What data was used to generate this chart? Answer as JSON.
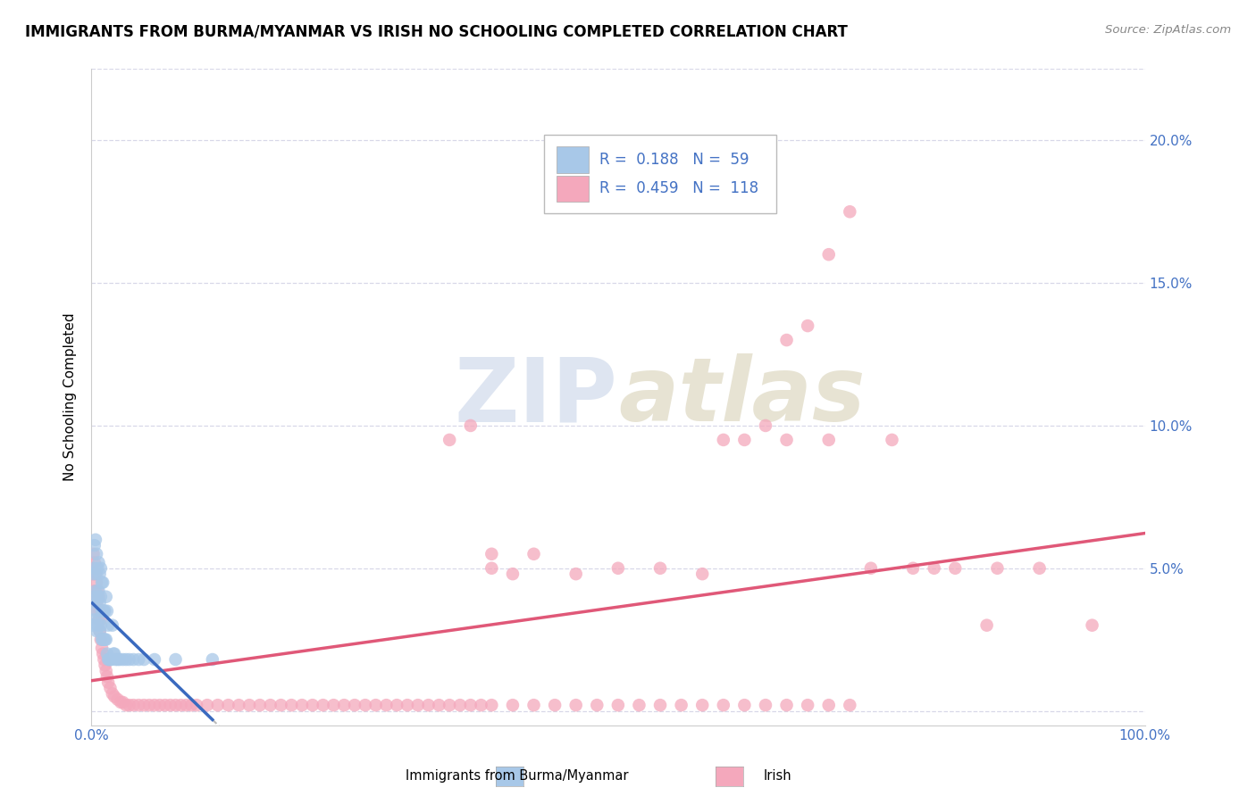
{
  "title": "IMMIGRANTS FROM BURMA/MYANMAR VS IRISH NO SCHOOLING COMPLETED CORRELATION CHART",
  "source": "Source: ZipAtlas.com",
  "ylabel": "No Schooling Completed",
  "xlim": [
    0,
    1.0
  ],
  "ylim": [
    -0.005,
    0.225
  ],
  "yticks": [
    0.0,
    0.05,
    0.1,
    0.15,
    0.2
  ],
  "ytick_labels": [
    "",
    "5.0%",
    "10.0%",
    "15.0%",
    "20.0%"
  ],
  "xtick_labels": [
    "0.0%",
    "100.0%"
  ],
  "blue_R": 0.188,
  "blue_N": 59,
  "pink_R": 0.459,
  "pink_N": 118,
  "blue_color": "#a8c8e8",
  "pink_color": "#f4a8bc",
  "blue_line_color": "#3a6abf",
  "pink_line_color": "#e05878",
  "dashed_line_color": "#bbbbbb",
  "axis_color": "#4472c4",
  "grid_color": "#d8d8e8",
  "watermark_color": "#c8d4e8",
  "title_fontsize": 12,
  "axis_label_fontsize": 11,
  "tick_fontsize": 11,
  "legend_fontsize": 12,
  "blue_points_x": [
    0.001,
    0.002,
    0.002,
    0.003,
    0.003,
    0.003,
    0.004,
    0.004,
    0.004,
    0.005,
    0.005,
    0.005,
    0.005,
    0.006,
    0.006,
    0.006,
    0.007,
    0.007,
    0.007,
    0.008,
    0.008,
    0.008,
    0.009,
    0.009,
    0.009,
    0.01,
    0.01,
    0.01,
    0.011,
    0.011,
    0.011,
    0.012,
    0.012,
    0.013,
    0.013,
    0.014,
    0.014,
    0.015,
    0.015,
    0.016,
    0.016,
    0.017,
    0.018,
    0.019,
    0.02,
    0.021,
    0.022,
    0.023,
    0.025,
    0.027,
    0.03,
    0.033,
    0.036,
    0.04,
    0.045,
    0.05,
    0.06,
    0.08,
    0.115
  ],
  "blue_points_y": [
    0.03,
    0.04,
    0.048,
    0.032,
    0.05,
    0.058,
    0.035,
    0.042,
    0.06,
    0.028,
    0.038,
    0.048,
    0.055,
    0.03,
    0.04,
    0.05,
    0.032,
    0.042,
    0.052,
    0.028,
    0.038,
    0.048,
    0.03,
    0.04,
    0.05,
    0.025,
    0.035,
    0.045,
    0.025,
    0.035,
    0.045,
    0.025,
    0.035,
    0.025,
    0.035,
    0.025,
    0.04,
    0.02,
    0.035,
    0.018,
    0.03,
    0.018,
    0.018,
    0.018,
    0.03,
    0.02,
    0.02,
    0.018,
    0.018,
    0.018,
    0.018,
    0.018,
    0.018,
    0.018,
    0.018,
    0.018,
    0.018,
    0.018,
    0.018
  ],
  "pink_points_x": [
    0.001,
    0.002,
    0.002,
    0.003,
    0.003,
    0.004,
    0.004,
    0.005,
    0.005,
    0.006,
    0.006,
    0.007,
    0.007,
    0.008,
    0.008,
    0.009,
    0.009,
    0.01,
    0.011,
    0.012,
    0.013,
    0.014,
    0.015,
    0.016,
    0.018,
    0.02,
    0.022,
    0.025,
    0.028,
    0.03,
    0.033,
    0.036,
    0.04,
    0.045,
    0.05,
    0.055,
    0.06,
    0.065,
    0.07,
    0.075,
    0.08,
    0.085,
    0.09,
    0.095,
    0.1,
    0.11,
    0.12,
    0.13,
    0.14,
    0.15,
    0.16,
    0.17,
    0.18,
    0.19,
    0.2,
    0.21,
    0.22,
    0.23,
    0.24,
    0.25,
    0.26,
    0.27,
    0.28,
    0.29,
    0.3,
    0.31,
    0.32,
    0.33,
    0.34,
    0.35,
    0.36,
    0.37,
    0.38,
    0.4,
    0.42,
    0.44,
    0.46,
    0.48,
    0.5,
    0.52,
    0.54,
    0.56,
    0.58,
    0.6,
    0.62,
    0.64,
    0.66,
    0.68,
    0.7,
    0.72,
    0.38,
    0.4,
    0.42,
    0.46,
    0.5,
    0.54,
    0.58,
    0.34,
    0.36,
    0.38,
    0.6,
    0.62,
    0.64,
    0.66,
    0.7,
    0.74,
    0.78,
    0.82,
    0.86,
    0.9,
    0.66,
    0.68,
    0.7,
    0.72,
    0.76,
    0.8,
    0.85,
    0.95
  ],
  "pink_points_y": [
    0.05,
    0.048,
    0.055,
    0.042,
    0.052,
    0.04,
    0.048,
    0.038,
    0.045,
    0.035,
    0.042,
    0.032,
    0.04,
    0.028,
    0.035,
    0.025,
    0.032,
    0.022,
    0.02,
    0.018,
    0.016,
    0.014,
    0.012,
    0.01,
    0.008,
    0.006,
    0.005,
    0.004,
    0.003,
    0.003,
    0.002,
    0.002,
    0.002,
    0.002,
    0.002,
    0.002,
    0.002,
    0.002,
    0.002,
    0.002,
    0.002,
    0.002,
    0.002,
    0.002,
    0.002,
    0.002,
    0.002,
    0.002,
    0.002,
    0.002,
    0.002,
    0.002,
    0.002,
    0.002,
    0.002,
    0.002,
    0.002,
    0.002,
    0.002,
    0.002,
    0.002,
    0.002,
    0.002,
    0.002,
    0.002,
    0.002,
    0.002,
    0.002,
    0.002,
    0.002,
    0.002,
    0.002,
    0.002,
    0.002,
    0.002,
    0.002,
    0.002,
    0.002,
    0.002,
    0.002,
    0.002,
    0.002,
    0.002,
    0.002,
    0.002,
    0.002,
    0.002,
    0.002,
    0.002,
    0.002,
    0.05,
    0.048,
    0.055,
    0.048,
    0.05,
    0.05,
    0.048,
    0.095,
    0.1,
    0.055,
    0.095,
    0.095,
    0.1,
    0.095,
    0.095,
    0.05,
    0.05,
    0.05,
    0.05,
    0.05,
    0.13,
    0.135,
    0.16,
    0.175,
    0.095,
    0.05,
    0.03,
    0.03
  ]
}
